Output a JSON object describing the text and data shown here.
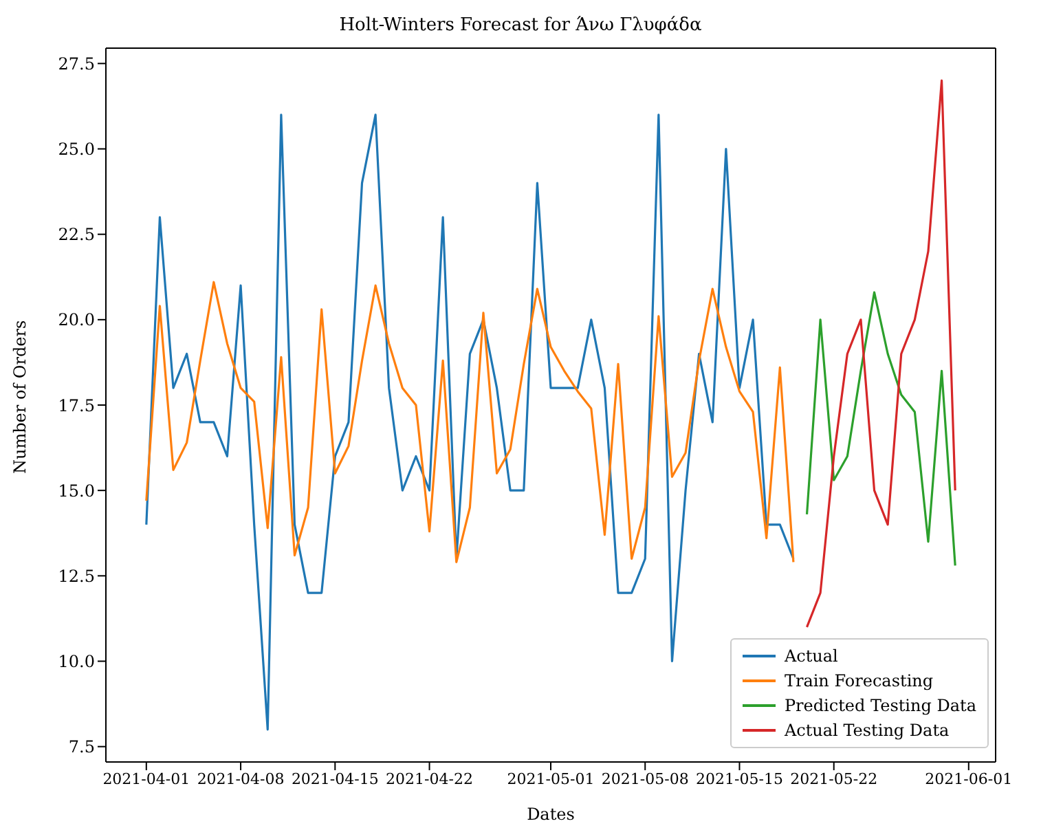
{
  "chart_data": {
    "type": "line",
    "title": "Holt-Winters Forecast for Άνω Γλυφάδα",
    "xlabel": "Dates",
    "ylabel": "Number of Orders",
    "xlim": [
      "2021-03-29",
      "2021-06-03"
    ],
    "xticks": [
      "2021-04-01",
      "2021-04-08",
      "2021-04-15",
      "2021-04-22",
      "2021-05-01",
      "2021-05-08",
      "2021-05-15",
      "2021-05-22",
      "2021-06-01"
    ],
    "ylim": [
      7.05,
      27.95
    ],
    "yticks": [
      {
        "value": 7.5,
        "label": "7.5"
      },
      {
        "value": 10,
        "label": "10.0"
      },
      {
        "value": 12.5,
        "label": "12.5"
      },
      {
        "value": 15,
        "label": "15.0"
      },
      {
        "value": 17.5,
        "label": "17.5"
      },
      {
        "value": 20,
        "label": "20.0"
      },
      {
        "value": 22.5,
        "label": "22.5"
      },
      {
        "value": 25,
        "label": "25.0"
      },
      {
        "value": 27.5,
        "label": "27.5"
      }
    ],
    "grid": false,
    "legend": "bottom right",
    "marker": "none",
    "line_style": "solid",
    "series": [
      {
        "name": "Actual",
        "color": "#1f77b4",
        "x": [
          "2021-04-01",
          "2021-04-02",
          "2021-04-03",
          "2021-04-04",
          "2021-04-05",
          "2021-04-06",
          "2021-04-07",
          "2021-04-08",
          "2021-04-09",
          "2021-04-10",
          "2021-04-11",
          "2021-04-12",
          "2021-04-13",
          "2021-04-14",
          "2021-04-15",
          "2021-04-16",
          "2021-04-17",
          "2021-04-18",
          "2021-04-19",
          "2021-04-20",
          "2021-04-21",
          "2021-04-22",
          "2021-04-23",
          "2021-04-24",
          "2021-04-25",
          "2021-04-26",
          "2021-04-27",
          "2021-04-28",
          "2021-04-29",
          "2021-04-30",
          "2021-05-01",
          "2021-05-02",
          "2021-05-03",
          "2021-05-04",
          "2021-05-05",
          "2021-05-06",
          "2021-05-07",
          "2021-05-08",
          "2021-05-09",
          "2021-05-10",
          "2021-05-11",
          "2021-05-12",
          "2021-05-13",
          "2021-05-14",
          "2021-05-15",
          "2021-05-16",
          "2021-05-17",
          "2021-05-18",
          "2021-05-19"
        ],
        "values": [
          14,
          23,
          18,
          19,
          17,
          17,
          16,
          21,
          14,
          8,
          26,
          14,
          12,
          12,
          16,
          17,
          24,
          26,
          18,
          15,
          16,
          15,
          23,
          13,
          19,
          20,
          18,
          15,
          15,
          24,
          18,
          18,
          18,
          20,
          18,
          12,
          12,
          13,
          26,
          10,
          15,
          19,
          17,
          25,
          18,
          20,
          14,
          14,
          13
        ]
      },
      {
        "name": "Train Forecasting",
        "color": "#ff7f0e",
        "x": [
          "2021-04-01",
          "2021-04-02",
          "2021-04-03",
          "2021-04-04",
          "2021-04-05",
          "2021-04-06",
          "2021-04-07",
          "2021-04-08",
          "2021-04-09",
          "2021-04-10",
          "2021-04-11",
          "2021-04-12",
          "2021-04-13",
          "2021-04-14",
          "2021-04-15",
          "2021-04-16",
          "2021-04-17",
          "2021-04-18",
          "2021-04-19",
          "2021-04-20",
          "2021-04-21",
          "2021-04-22",
          "2021-04-23",
          "2021-04-24",
          "2021-04-25",
          "2021-04-26",
          "2021-04-27",
          "2021-04-28",
          "2021-04-29",
          "2021-04-30",
          "2021-05-01",
          "2021-05-02",
          "2021-05-03",
          "2021-05-04",
          "2021-05-05",
          "2021-05-06",
          "2021-05-07",
          "2021-05-08",
          "2021-05-09",
          "2021-05-10",
          "2021-05-11",
          "2021-05-12",
          "2021-05-13",
          "2021-05-14",
          "2021-05-15",
          "2021-05-16",
          "2021-05-17",
          "2021-05-18",
          "2021-05-19"
        ],
        "values": [
          14.7,
          20.4,
          15.6,
          16.4,
          18.8,
          21.1,
          19.3,
          18.0,
          17.6,
          13.9,
          18.9,
          13.1,
          14.5,
          20.3,
          15.5,
          16.3,
          18.8,
          21.0,
          19.3,
          18.0,
          17.5,
          13.8,
          18.8,
          12.9,
          14.5,
          20.2,
          15.5,
          16.2,
          18.7,
          20.9,
          19.2,
          18.5,
          17.9,
          17.4,
          13.7,
          18.7,
          13.0,
          14.5,
          20.1,
          15.4,
          16.1,
          18.8,
          20.9,
          19.2,
          17.9,
          17.3,
          13.6,
          18.6,
          12.9
        ]
      },
      {
        "name": "Predicted Testing Data",
        "color": "#2ca02c",
        "x": [
          "2021-05-20",
          "2021-05-21",
          "2021-05-22",
          "2021-05-23",
          "2021-05-24",
          "2021-05-25",
          "2021-05-26",
          "2021-05-27",
          "2021-05-28",
          "2021-05-29",
          "2021-05-30",
          "2021-05-31"
        ],
        "values": [
          14.3,
          20.0,
          15.3,
          16.0,
          18.5,
          20.8,
          19.0,
          17.8,
          17.3,
          13.5,
          18.5,
          12.8
        ]
      },
      {
        "name": "Actual Testing Data",
        "color": "#d62728",
        "x": [
          "2021-05-20",
          "2021-05-21",
          "2021-05-22",
          "2021-05-23",
          "2021-05-24",
          "2021-05-25",
          "2021-05-26",
          "2021-05-27",
          "2021-05-28",
          "2021-05-29",
          "2021-05-30",
          "2021-05-31"
        ],
        "values": [
          11,
          12,
          16,
          19,
          20,
          15,
          14,
          19,
          20,
          22,
          27,
          15
        ]
      }
    ]
  }
}
